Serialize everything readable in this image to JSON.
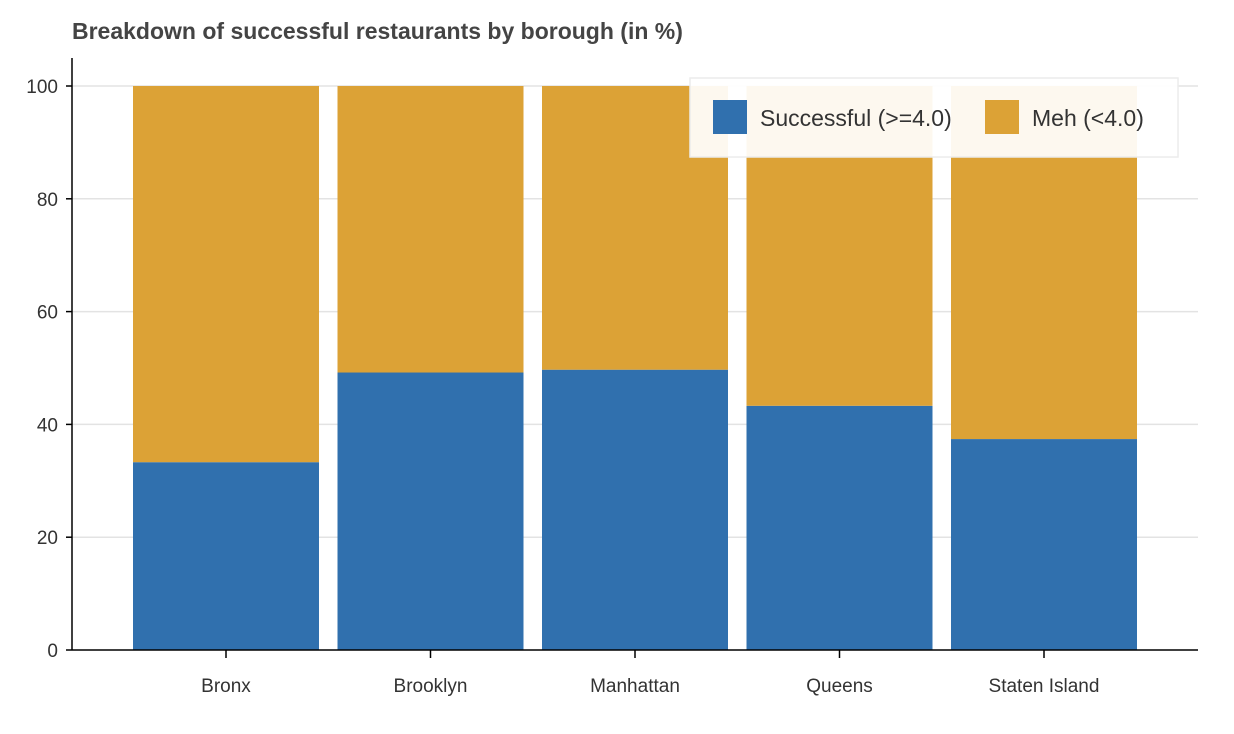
{
  "chart_data": {
    "type": "bar",
    "stacked": true,
    "title": "Breakdown of successful restaurants by borough (in %)",
    "xlabel": "",
    "ylabel": "",
    "categories": [
      "Bronx",
      "Brooklyn",
      "Manhattan",
      "Queens",
      "Staten Island"
    ],
    "series": [
      {
        "name": "Successful (>=4.0)",
        "color": "#3070ae",
        "values": [
          33.3,
          49.2,
          49.7,
          43.3,
          37.4
        ]
      },
      {
        "name": "Meh (<4.0)",
        "color": "#dca236",
        "values": [
          66.7,
          50.8,
          50.3,
          56.7,
          62.6
        ]
      }
    ],
    "ylim": [
      0,
      100
    ],
    "yticks": [
      0,
      20,
      40,
      60,
      80,
      100
    ],
    "grid": "horizontal",
    "legend_position": "top-right"
  }
}
